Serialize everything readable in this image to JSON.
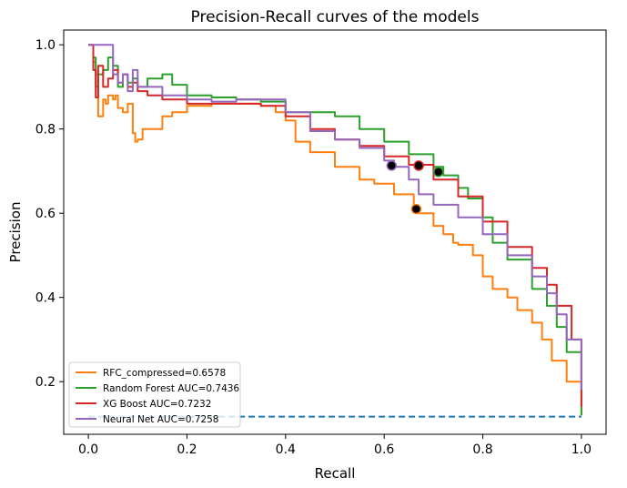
{
  "chart_data": {
    "type": "line",
    "title": "Precision-Recall curves of the models",
    "xlabel": "Recall",
    "ylabel": "Precision",
    "xlim": [
      -0.05,
      1.05
    ],
    "ylim": [
      0.075,
      1.035
    ],
    "xticks": [
      0.0,
      0.2,
      0.4,
      0.6,
      0.8,
      1.0
    ],
    "xtick_labels": [
      "0.0",
      "0.2",
      "0.4",
      "0.6",
      "0.8",
      "1.0"
    ],
    "yticks": [
      0.2,
      0.4,
      0.6,
      0.8,
      1.0
    ],
    "ytick_labels": [
      "0.2",
      "0.4",
      "0.6",
      "0.8",
      "1.0"
    ],
    "grid": false,
    "legend_position": "bottom-left",
    "baseline": {
      "y": 0.117,
      "x": [
        0.0,
        1.0
      ],
      "color": "#1f77b4",
      "style": "dashed"
    },
    "series": [
      {
        "name": "RFC_compressed=0.6578",
        "color": "#ff7f0e",
        "marker": {
          "x": 0.665,
          "y": 0.61
        },
        "x": [
          0.0,
          0.01,
          0.015,
          0.02,
          0.03,
          0.035,
          0.04,
          0.05,
          0.055,
          0.06,
          0.07,
          0.08,
          0.09,
          0.095,
          0.1,
          0.11,
          0.13,
          0.15,
          0.17,
          0.2,
          0.25,
          0.3,
          0.35,
          0.38,
          0.4,
          0.42,
          0.45,
          0.5,
          0.55,
          0.58,
          0.62,
          0.66,
          0.67,
          0.7,
          0.72,
          0.74,
          0.75,
          0.78,
          0.8,
          0.82,
          0.85,
          0.87,
          0.9,
          0.92,
          0.94,
          0.97,
          1.0
        ],
        "y": [
          1.0,
          0.96,
          0.93,
          0.83,
          0.87,
          0.86,
          0.88,
          0.87,
          0.88,
          0.85,
          0.84,
          0.86,
          0.79,
          0.77,
          0.775,
          0.8,
          0.8,
          0.83,
          0.84,
          0.855,
          0.86,
          0.86,
          0.855,
          0.84,
          0.82,
          0.77,
          0.745,
          0.71,
          0.68,
          0.67,
          0.645,
          0.61,
          0.6,
          0.57,
          0.55,
          0.53,
          0.525,
          0.5,
          0.45,
          0.42,
          0.4,
          0.37,
          0.34,
          0.3,
          0.25,
          0.2,
          0.12
        ]
      },
      {
        "name": "Random Forest AUC=0.7436",
        "color": "#2ca02c",
        "marker": {
          "x": 0.71,
          "y": 0.698
        },
        "x": [
          0.0,
          0.01,
          0.015,
          0.02,
          0.03,
          0.04,
          0.05,
          0.06,
          0.07,
          0.08,
          0.09,
          0.1,
          0.12,
          0.15,
          0.17,
          0.2,
          0.25,
          0.3,
          0.35,
          0.4,
          0.45,
          0.5,
          0.55,
          0.6,
          0.65,
          0.7,
          0.72,
          0.75,
          0.77,
          0.8,
          0.82,
          0.85,
          0.9,
          0.93,
          0.95,
          0.97,
          1.0
        ],
        "y": [
          1.0,
          0.97,
          0.9,
          0.93,
          0.94,
          0.97,
          0.95,
          0.9,
          0.93,
          0.91,
          0.92,
          0.9,
          0.92,
          0.93,
          0.905,
          0.88,
          0.875,
          0.87,
          0.865,
          0.84,
          0.84,
          0.83,
          0.8,
          0.77,
          0.74,
          0.71,
          0.69,
          0.66,
          0.635,
          0.59,
          0.53,
          0.49,
          0.42,
          0.38,
          0.33,
          0.27,
          0.12
        ]
      },
      {
        "name": "XG Boost AUC=0.7232",
        "color": "#d62728",
        "marker": {
          "x": 0.67,
          "y": 0.713
        },
        "x": [
          0.0,
          0.01,
          0.015,
          0.02,
          0.03,
          0.04,
          0.05,
          0.06,
          0.07,
          0.08,
          0.09,
          0.1,
          0.12,
          0.15,
          0.2,
          0.25,
          0.3,
          0.35,
          0.4,
          0.45,
          0.5,
          0.55,
          0.6,
          0.65,
          0.7,
          0.75,
          0.8,
          0.85,
          0.9,
          0.93,
          0.95,
          0.98,
          1.0
        ],
        "y": [
          1.0,
          0.94,
          0.875,
          0.95,
          0.9,
          0.92,
          0.94,
          0.91,
          0.93,
          0.9,
          0.91,
          0.89,
          0.88,
          0.87,
          0.86,
          0.86,
          0.86,
          0.855,
          0.83,
          0.8,
          0.775,
          0.76,
          0.735,
          0.715,
          0.68,
          0.64,
          0.58,
          0.52,
          0.47,
          0.43,
          0.38,
          0.3,
          0.14
        ]
      },
      {
        "name": "Neural Net AUC=0.7258",
        "color": "#9467bd",
        "marker": {
          "x": 0.615,
          "y": 0.713
        },
        "x": [
          0.0,
          0.01,
          0.02,
          0.03,
          0.04,
          0.05,
          0.06,
          0.07,
          0.08,
          0.09,
          0.1,
          0.12,
          0.15,
          0.2,
          0.25,
          0.3,
          0.35,
          0.4,
          0.45,
          0.5,
          0.55,
          0.6,
          0.62,
          0.65,
          0.67,
          0.7,
          0.75,
          0.8,
          0.85,
          0.9,
          0.93,
          0.95,
          0.97,
          1.0
        ],
        "y": [
          1.0,
          1.0,
          1.0,
          1.0,
          1.0,
          0.93,
          0.91,
          0.93,
          0.89,
          0.94,
          0.9,
          0.9,
          0.88,
          0.87,
          0.865,
          0.87,
          0.87,
          0.84,
          0.795,
          0.775,
          0.755,
          0.725,
          0.71,
          0.68,
          0.645,
          0.62,
          0.59,
          0.55,
          0.5,
          0.45,
          0.41,
          0.36,
          0.3,
          0.18
        ]
      }
    ]
  }
}
